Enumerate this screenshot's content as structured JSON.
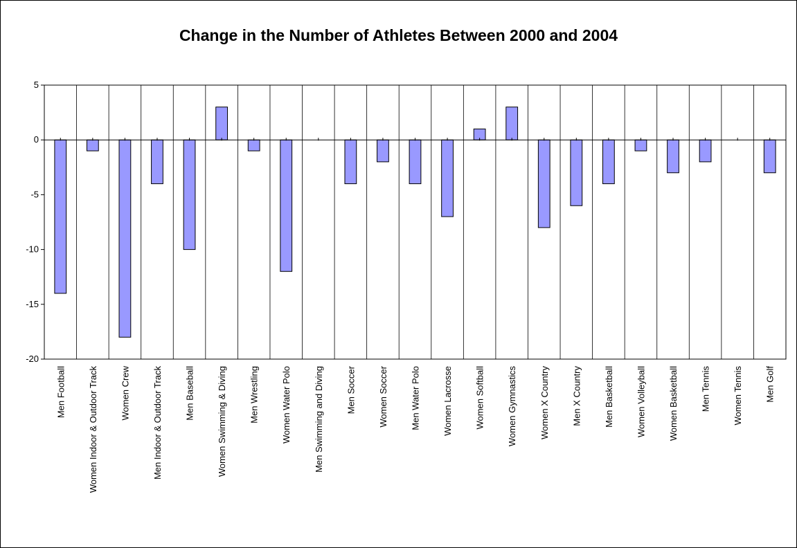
{
  "chart_data": {
    "type": "bar",
    "title": "Change in the Number of Athletes Between 2000 and 2004",
    "xlabel": "",
    "ylabel": "",
    "ylim": [
      -20,
      5
    ],
    "yticks": [
      5,
      0,
      -5,
      -10,
      -15,
      -20
    ],
    "grid": "vertical",
    "legend": "none",
    "bar_color": "#9999ff",
    "bar_edge_color": "#000000",
    "categories": [
      "Men Football",
      "Women Indoor & Outdoor Track",
      "Women Crew",
      "Men Indoor & Outdoor Track",
      "Men Baseball",
      "Women Swimming & Diving",
      "Men Wrestling",
      "Women Water Polo",
      "Men Swimming and Diving",
      "Men Soccer",
      "Women Soccer",
      "Men Water Polo",
      "Women Lacrosse",
      "Women Softball",
      "Women Gymnastics",
      "Women X Country",
      "Men X Country",
      "Men Basketball",
      "Women Volleyball",
      "Women Basketball",
      "Men Tennis",
      "Women Tennis",
      "Men Golf"
    ],
    "values": [
      -14,
      -1,
      -18,
      -4,
      -10,
      3,
      -1,
      -12,
      0,
      -4,
      -2,
      -4,
      -7,
      1,
      3,
      -8,
      -6,
      -4,
      -1,
      -3,
      -2,
      0,
      -3
    ]
  }
}
